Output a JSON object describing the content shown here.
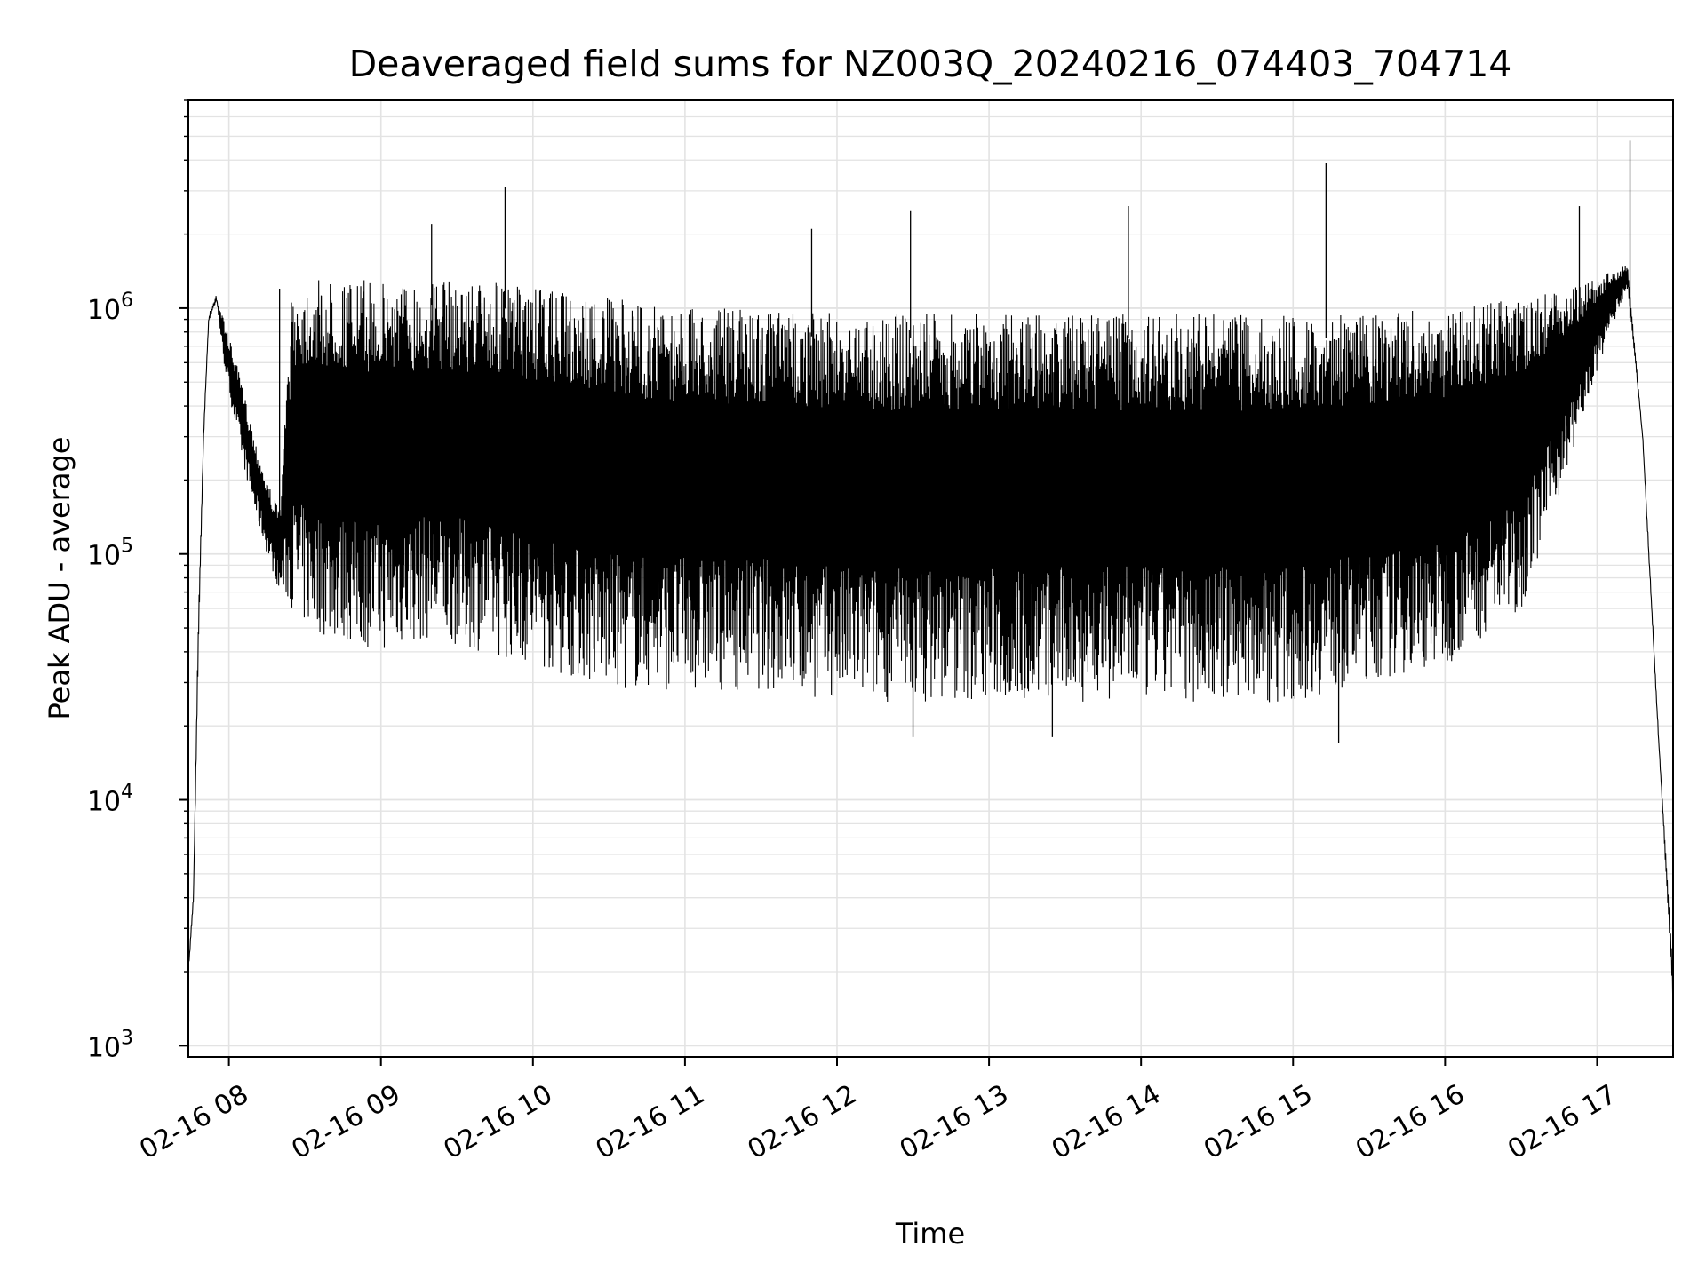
{
  "chart_data": {
    "type": "line",
    "title": "Deaveraged field sums for NZ003Q_20240216_074403_704714",
    "xlabel": "Time",
    "ylabel": "Peak ADU - average",
    "y_scale": "log",
    "ylim": [
      900,
      7000000
    ],
    "xlim": [
      "2024-02-16 07:44",
      "2024-02-16 17:30"
    ],
    "x_ticks": [
      "02-16 08",
      "02-16 09",
      "02-16 10",
      "02-16 11",
      "02-16 12",
      "02-16 13",
      "02-16 14",
      "02-16 15",
      "02-16 16",
      "02-16 17"
    ],
    "y_ticks": [
      {
        "base": "10",
        "exp": "3",
        "value": 1000
      },
      {
        "base": "10",
        "exp": "4",
        "value": 10000
      },
      {
        "base": "10",
        "exp": "5",
        "value": 100000
      },
      {
        "base": "10",
        "exp": "6",
        "value": 1000000
      }
    ],
    "grid": true,
    "line_color": "#000000",
    "series": [
      {
        "x": [
          "2024-02-16 07:44",
          "2024-02-16 07:46",
          "2024-02-16 07:48",
          "2024-02-16 07:50",
          "2024-02-16 07:52",
          "2024-02-16 07:55",
          "2024-02-16 07:58",
          "2024-02-16 08:01",
          "2024-02-16 08:05",
          "2024-02-16 08:10",
          "2024-02-16 08:15",
          "2024-02-16 08:20",
          "2024-02-16 08:25",
          "2024-02-16 08:30",
          "2024-02-16 08:40",
          "2024-02-16 09:00",
          "2024-02-16 09:20",
          "2024-02-16 09:40",
          "2024-02-16 10:00",
          "2024-02-16 10:30",
          "2024-02-16 11:00",
          "2024-02-16 11:30",
          "2024-02-16 12:00",
          "2024-02-16 12:30",
          "2024-02-16 13:00",
          "2024-02-16 13:30",
          "2024-02-16 14:00",
          "2024-02-16 14:30",
          "2024-02-16 15:00",
          "2024-02-16 15:30",
          "2024-02-16 16:00",
          "2024-02-16 16:30",
          "2024-02-16 16:50",
          "2024-02-16 17:05",
          "2024-02-16 17:12",
          "2024-02-16 17:18",
          "2024-02-16 17:24",
          "2024-02-16 17:30"
        ],
        "y_top": [
          2000,
          4000,
          60000,
          300000,
          900000,
          1100000,
          900000,
          700000,
          500000,
          300000,
          200000,
          150000,
          1200000,
          1300000,
          1300000,
          1300000,
          1300000,
          1300000,
          1200000,
          1100000,
          1000000,
          1000000,
          950000,
          950000,
          950000,
          950000,
          950000,
          950000,
          950000,
          950000,
          1000000,
          1100000,
          1200000,
          1400000,
          1500000,
          300000,
          20000,
          2000
        ],
        "y_bottom": [
          2000,
          4000,
          40000,
          300000,
          900000,
          1100000,
          600000,
          400000,
          250000,
          150000,
          100000,
          70000,
          60000,
          50000,
          45000,
          40000,
          45000,
          40000,
          35000,
          28000,
          28000,
          28000,
          25000,
          25000,
          25000,
          25000,
          25000,
          25000,
          25000,
          30000,
          35000,
          60000,
          250000,
          800000,
          1200000,
          300000,
          20000,
          1500
        ],
        "spikes": [
          {
            "x": "2024-02-16 08:20",
            "y": 1200000
          },
          {
            "x": "2024-02-16 09:20",
            "y": 2200000
          },
          {
            "x": "2024-02-16 09:49",
            "y": 3100000
          },
          {
            "x": "2024-02-16 11:50",
            "y": 2100000
          },
          {
            "x": "2024-02-16 12:29",
            "y": 2500000
          },
          {
            "x": "2024-02-16 13:55",
            "y": 2600000
          },
          {
            "x": "2024-02-16 15:13",
            "y": 3900000
          },
          {
            "x": "2024-02-16 16:53",
            "y": 2600000
          },
          {
            "x": "2024-02-16 17:13",
            "y": 4800000
          },
          {
            "x": "2024-02-16 12:30",
            "y": 18000
          },
          {
            "x": "2024-02-16 13:25",
            "y": 18000
          },
          {
            "x": "2024-02-16 15:18",
            "y": 17000
          }
        ]
      }
    ]
  }
}
